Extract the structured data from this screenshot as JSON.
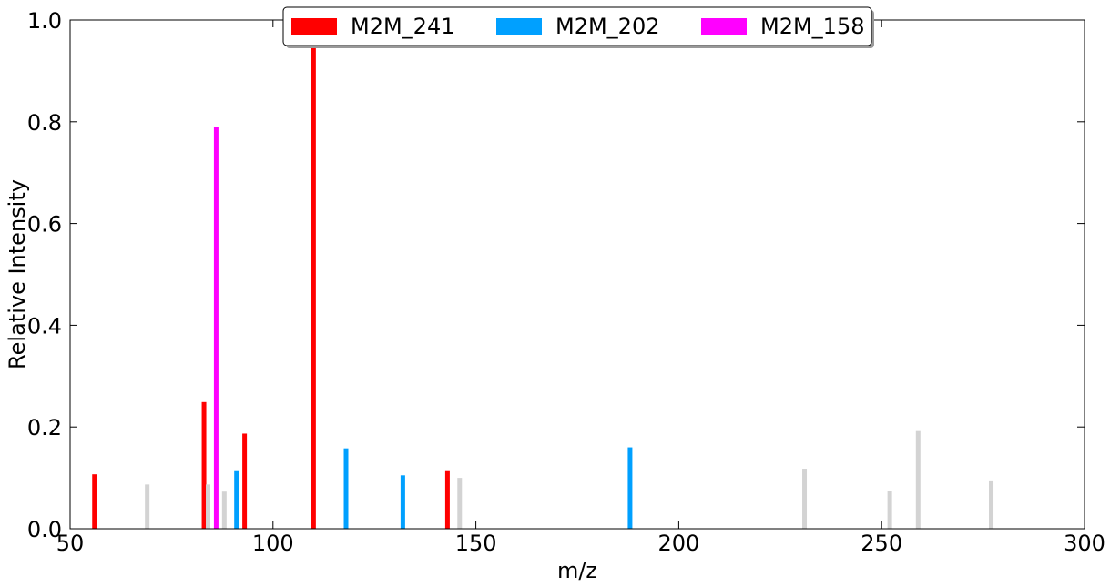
{
  "chart_data": {
    "type": "bar",
    "xlabel": "m/z",
    "ylabel": "Relative Intensity",
    "xlim": [
      50,
      300
    ],
    "ylim": [
      0,
      1.0
    ],
    "x_ticks": [
      "50",
      "100",
      "150",
      "200",
      "250",
      "300"
    ],
    "y_ticks": [
      "0.0",
      "0.2",
      "0.4",
      "0.6",
      "0.8",
      "1.0"
    ],
    "legend_position": "top-center",
    "series": [
      {
        "name": "M2M_241",
        "color": "#ff0000",
        "points": [
          {
            "x": 56.0,
            "y": 0.107
          },
          {
            "x": 83.0,
            "y": 0.249
          },
          {
            "x": 93.0,
            "y": 0.187
          },
          {
            "x": 110.0,
            "y": 1.0
          },
          {
            "x": 143.0,
            "y": 0.115
          }
        ]
      },
      {
        "name": "M2M_202",
        "color": "#00a0ff",
        "points": [
          {
            "x": 91.0,
            "y": 0.115
          },
          {
            "x": 118.0,
            "y": 0.158
          },
          {
            "x": 132.0,
            "y": 0.105
          },
          {
            "x": 188.0,
            "y": 0.16
          }
        ]
      },
      {
        "name": "M2M_158",
        "color": "#ff00ff",
        "points": [
          {
            "x": 86.0,
            "y": 0.79
          }
        ]
      },
      {
        "color": "#d3d3d3",
        "points": [
          {
            "x": 69.0,
            "y": 0.087
          },
          {
            "x": 84.0,
            "y": 0.087
          },
          {
            "x": 88.0,
            "y": 0.073
          },
          {
            "x": 146.0,
            "y": 0.1
          },
          {
            "x": 231.0,
            "y": 0.118
          },
          {
            "x": 252.0,
            "y": 0.075
          },
          {
            "x": 259.0,
            "y": 0.192
          },
          {
            "x": 277.0,
            "y": 0.095
          }
        ]
      }
    ]
  }
}
